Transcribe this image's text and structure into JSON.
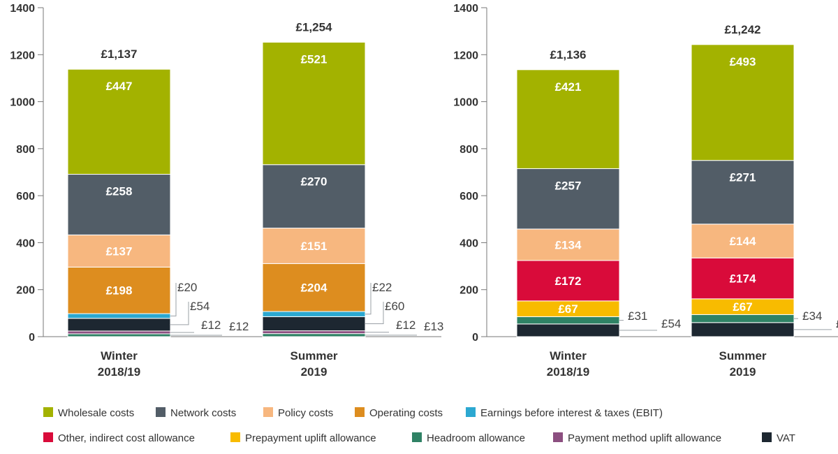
{
  "chart_data": [
    {
      "type": "bar",
      "stacked": true,
      "ylim": [
        0,
        1400
      ],
      "yticks": [
        0,
        200,
        400,
        600,
        800,
        1000,
        1200,
        1400
      ],
      "categories": [
        {
          "label": [
            "Winter",
            "2018/19"
          ],
          "total": "£1,137"
        },
        {
          "label": [
            "Summer",
            "2019"
          ],
          "total": "£1,254"
        }
      ],
      "series": [
        {
          "key": "headroom",
          "values": [
            12,
            13
          ]
        },
        {
          "key": "payment_method",
          "values": [
            12,
            12
          ]
        },
        {
          "key": "vat",
          "values": [
            54,
            60
          ]
        },
        {
          "key": "ebit",
          "values": [
            20,
            22
          ]
        },
        {
          "key": "operating",
          "values": [
            198,
            204
          ]
        },
        {
          "key": "policy",
          "values": [
            137,
            151
          ]
        },
        {
          "key": "network",
          "values": [
            258,
            270
          ]
        },
        {
          "key": "wholesale",
          "values": [
            447,
            521
          ]
        }
      ],
      "segment_labels": {
        "wholesale": [
          "£447",
          "£521"
        ],
        "network": [
          "£258",
          "£270"
        ],
        "policy": [
          "£137",
          "£151"
        ],
        "operating": [
          "£198",
          "£204"
        ]
      },
      "callouts": [
        {
          "series": "ebit",
          "labels": [
            "£20",
            "£22"
          ]
        },
        {
          "series": "vat",
          "labels": [
            "£54",
            "£60"
          ]
        },
        {
          "series": "payment_method",
          "labels": [
            "£12",
            "£12"
          ]
        },
        {
          "series": "headroom",
          "labels": [
            "£12",
            "£13"
          ]
        }
      ]
    },
    {
      "type": "bar",
      "stacked": true,
      "ylim": [
        0,
        1400
      ],
      "yticks": [
        0,
        200,
        400,
        600,
        800,
        1000,
        1200,
        1400
      ],
      "categories": [
        {
          "label": [
            "Winter",
            "2018/19"
          ],
          "total": "£1,136"
        },
        {
          "label": [
            "Summer",
            "2019"
          ],
          "total": "£1,242"
        }
      ],
      "series": [
        {
          "key": "vat",
          "values": [
            54,
            60
          ]
        },
        {
          "key": "headroom",
          "values": [
            31,
            34
          ]
        },
        {
          "key": "prepayment",
          "values": [
            67,
            67
          ]
        },
        {
          "key": "indirect",
          "values": [
            172,
            174
          ]
        },
        {
          "key": "policy",
          "values": [
            134,
            144
          ]
        },
        {
          "key": "network",
          "values": [
            257,
            271
          ]
        },
        {
          "key": "wholesale",
          "values": [
            421,
            493
          ]
        }
      ],
      "segment_labels": {
        "wholesale": [
          "£421",
          "£493"
        ],
        "network": [
          "£257",
          "£271"
        ],
        "policy": [
          "£134",
          "£144"
        ],
        "indirect": [
          "£172",
          "£174"
        ],
        "prepayment": [
          "£67",
          "£67"
        ]
      },
      "callouts": [
        {
          "series": "headroom",
          "labels": [
            "£31",
            "£34"
          ]
        },
        {
          "series": "vat",
          "labels": [
            "£54",
            "£"
          ]
        }
      ]
    }
  ],
  "colors": {
    "wholesale": "#a3b200",
    "network": "#525d67",
    "policy": "#f7b77f",
    "operating": "#dd8d1f",
    "ebit": "#2ca8d1",
    "indirect": "#d90b3a",
    "prepayment": "#f8bb00",
    "headroom": "#2f8265",
    "payment_method": "#8c4f80",
    "vat": "#1d2731"
  },
  "legend": {
    "row1": [
      {
        "key": "wholesale",
        "label": "Wholesale costs"
      },
      {
        "key": "network",
        "label": "Network costs"
      },
      {
        "key": "policy",
        "label": "Policy costs"
      },
      {
        "key": "operating",
        "label": "Operating costs"
      },
      {
        "key": "ebit",
        "label": "Earnings before interest & taxes (EBIT)"
      }
    ],
    "row2": [
      {
        "key": "indirect",
        "label": "Other, indirect cost allowance"
      },
      {
        "key": "prepayment",
        "label": "Prepayment uplift allowance"
      },
      {
        "key": "headroom",
        "label": "Headroom allowance"
      },
      {
        "key": "payment_method",
        "label": "Payment method uplift allowance"
      },
      {
        "key": "vat",
        "label": "VAT"
      }
    ]
  }
}
